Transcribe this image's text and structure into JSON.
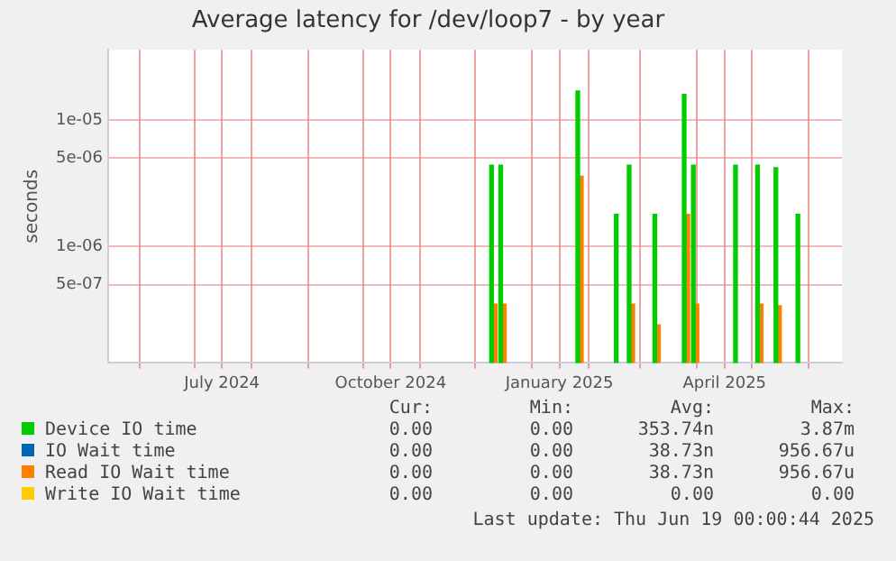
{
  "chart_data": {
    "type": "bar",
    "title": "Average latency for /dev/loop7 - by year",
    "ylabel": "seconds",
    "x": [
      "2024-12-11",
      "2024-12-16",
      "2025-01-27",
      "2025-02-16",
      "2025-02-24",
      "2025-03-10",
      "2025-03-26",
      "2025-03-31",
      "2025-04-22",
      "2025-05-05",
      "2025-05-15",
      "2025-05-26"
    ],
    "series": [
      {
        "name": "Device IO time",
        "color": "#00cc00",
        "values": [
          4.4e-06,
          4.4e-06,
          1.7e-05,
          1.8e-06,
          4.4e-06,
          1.8e-06,
          1.6e-05,
          4.4e-06,
          4.4e-06,
          4.4e-06,
          4.2e-06,
          1.8e-06
        ]
      },
      {
        "name": "IO Wait time",
        "color": "#0066b3",
        "values": [
          null,
          null,
          null,
          null,
          null,
          null,
          null,
          null,
          null,
          null,
          null,
          null
        ]
      },
      {
        "name": "Read IO Wait time",
        "color": "#ff8000",
        "values": [
          3.5e-07,
          3.5e-07,
          3.6e-06,
          null,
          3.5e-07,
          2.4e-07,
          1.8e-06,
          3.5e-07,
          null,
          3.5e-07,
          3.4e-07,
          null
        ]
      },
      {
        "name": "Write IO Wait time",
        "color": "#ffcc00",
        "values": [
          null,
          null,
          null,
          null,
          null,
          null,
          null,
          null,
          null,
          null,
          null,
          null
        ]
      }
    ],
    "log": "y",
    "ylim": [
      1.2e-07,
      3.6e-05
    ],
    "yticks": [
      {
        "value": 1e-05,
        "label": "1e-05"
      },
      {
        "value": 5e-06,
        "label": "5e-06"
      },
      {
        "value": 1e-06,
        "label": "1e-06"
      },
      {
        "value": 5e-07,
        "label": "5e-07"
      }
    ],
    "xlim": [
      "2024-05-15",
      "2025-06-19"
    ],
    "xticks": [
      {
        "value": "2024-06-01",
        "label": null
      },
      {
        "value": "2024-07-01",
        "label": null
      },
      {
        "value": "2024-07-16",
        "label": "July 2024"
      },
      {
        "value": "2024-08-01",
        "label": null
      },
      {
        "value": "2024-09-01",
        "label": null
      },
      {
        "value": "2024-10-01",
        "label": null
      },
      {
        "value": "2024-10-16",
        "label": "October 2024"
      },
      {
        "value": "2024-11-01",
        "label": null
      },
      {
        "value": "2024-12-01",
        "label": null
      },
      {
        "value": "2025-01-01",
        "label": null
      },
      {
        "value": "2025-01-16",
        "label": "January 2025"
      },
      {
        "value": "2025-02-01",
        "label": null
      },
      {
        "value": "2025-03-01",
        "label": null
      },
      {
        "value": "2025-04-01",
        "label": null
      },
      {
        "value": "2025-04-16",
        "label": "April 2025"
      },
      {
        "value": "2025-05-01",
        "label": null
      },
      {
        "value": "2025-06-01",
        "label": null
      }
    ],
    "grid": true,
    "legend": "bottom",
    "annotations": [
      "Cur:",
      "Min:",
      "Avg:",
      "Max:",
      "0.00",
      "0.00",
      "353.74n",
      "3.87m",
      "0.00",
      "0.00",
      "38.73n",
      "956.67u",
      "0.00",
      "0.00",
      "38.73n",
      "956.67u",
      "0.00",
      "0.00",
      "0.00",
      "0.00",
      "Last update: Thu Jun 19 00:00:44 2025"
    ]
  }
}
